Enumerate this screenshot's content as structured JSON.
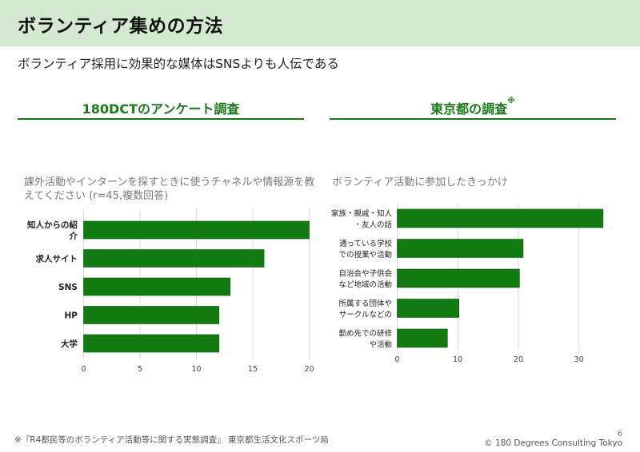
{
  "header": {
    "title": "ボランティア集めの方法",
    "subtitle": "ボランティア採用に効果的な媒体はSNSよりも人伝である"
  },
  "sections": {
    "left_title": "180DCTのアンケート調査",
    "right_title": "東京都の調査",
    "right_title_mark": "※"
  },
  "colors": {
    "bar": "#117a11",
    "grid": "#d9d9d9",
    "accent": "#1a7a1a"
  },
  "chart_data": [
    {
      "type": "bar",
      "orientation": "horizontal",
      "title": "課外活動やインターンを探すときに使うチャネルや情報源を教えてください (r=45,複数回答)",
      "categories": [
        [
          "知人からの紹",
          "介"
        ],
        [
          "求人サイト"
        ],
        [
          "SNS"
        ],
        [
          "HP"
        ],
        [
          "大学"
        ]
      ],
      "values": [
        20,
        16,
        13,
        12,
        12
      ],
      "xlim": [
        0,
        20
      ],
      "xticks": [
        0,
        5,
        10,
        15,
        20
      ],
      "xlabel": "",
      "ylabel": ""
    },
    {
      "type": "bar",
      "orientation": "horizontal",
      "title": "ボランティア活動に参加したきっかけ",
      "categories": [
        [
          "家族・親戚・知人",
          "・友人の話"
        ],
        [
          "通っている学校",
          "での授業や活動"
        ],
        [
          "自治会や子供会",
          "など地域の活動"
        ],
        [
          "所属する団体や",
          "サークルなどの"
        ],
        [
          "勤め先での研修",
          "や活動"
        ]
      ],
      "values": [
        34,
        20.8,
        20.2,
        10.2,
        8.3
      ],
      "xlim": [
        0,
        36
      ],
      "xticks": [
        0,
        10,
        20,
        30
      ],
      "xlabel": "",
      "ylabel": ""
    }
  ],
  "footer": {
    "note": "※『R4都民等のボランティア活動等に関する実態調査』 東京都生活文化スポーツ局",
    "page": "6",
    "copyright": "© 180 Degrees Consulting Tokyo"
  }
}
